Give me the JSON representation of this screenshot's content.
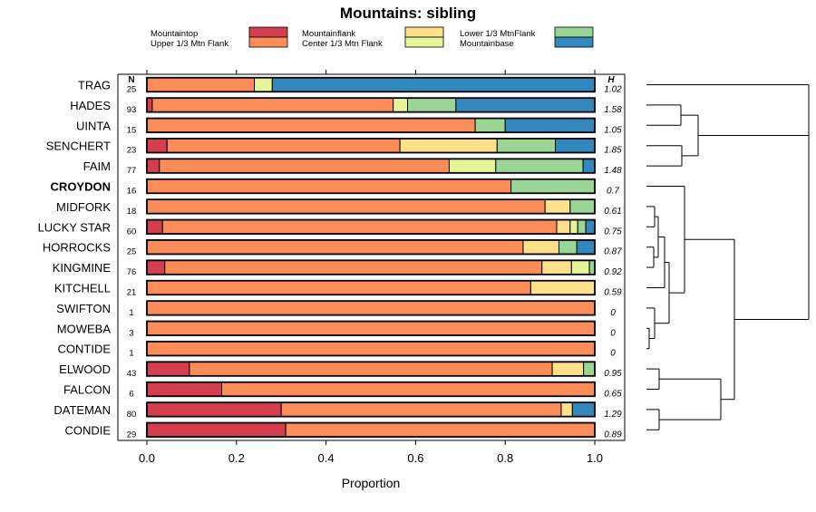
{
  "chart_data": {
    "type": "bar",
    "orientation": "horizontal",
    "stacked": true,
    "title": "Mountains: sibling",
    "xlabel": "Proportion",
    "xlim": [
      0,
      1
    ],
    "xticks": [
      "0.0",
      "0.2",
      "0.4",
      "0.6",
      "0.8",
      "1.0"
    ],
    "n_header": "N",
    "h_header": "H",
    "bold_category": "CROYDON",
    "legend": [
      {
        "name": "Mountaintop",
        "color": "#d53e4f"
      },
      {
        "name": "Upper 1/3 Mtn Flank",
        "color": "#fc8d59"
      },
      {
        "name": "Mountainflank",
        "color": "#fee08b"
      },
      {
        "name": "Center 1/3 Mtn Flank",
        "color": "#e6f598"
      },
      {
        "name": "Lower 1/3 MtnFlank",
        "color": "#99d594"
      },
      {
        "name": "Mountainbase",
        "color": "#3288bd"
      }
    ],
    "categories": [
      "TRAG",
      "HADES",
      "UINTA",
      "SENCHERT",
      "FAIM",
      "CROYDON",
      "MIDFORK",
      "LUCKY STAR",
      "HORROCKS",
      "KINGMINE",
      "KITCHELL",
      "SWIFTON",
      "MOWEBA",
      "CONTIDE",
      "ELWOOD",
      "FALCON",
      "DATEMAN",
      "CONDIE"
    ],
    "N": [
      "25",
      "93",
      "15",
      "23",
      "77",
      "16",
      "18",
      "60",
      "25",
      "76",
      "21",
      "1",
      "3",
      "1",
      "43",
      "6",
      "80",
      "29"
    ],
    "H": [
      "1.02",
      "1.58",
      "1.05",
      "1.85",
      "1.48",
      "0.7",
      "0.61",
      "0.75",
      "0.87",
      "0.92",
      "0.59",
      "0",
      "0",
      "0",
      "0.95",
      "0.65",
      "1.29",
      "0.89"
    ],
    "series": [
      {
        "name": "Mountaintop",
        "values": [
          0,
          0.012,
          0,
          0.045,
          0.028,
          0,
          0,
          0.035,
          0,
          0.04,
          0,
          0,
          0,
          0,
          0.095,
          0.167,
          0.3,
          0.31
        ]
      },
      {
        "name": "Upper 1/3 Mtn Flank",
        "values": [
          0.24,
          0.538,
          0.733,
          0.52,
          0.647,
          0.813,
          0.889,
          0.88,
          0.84,
          0.842,
          0.857,
          1,
          1,
          1,
          0.81,
          0.833,
          0.625,
          0.69
        ]
      },
      {
        "name": "Mountainflank",
        "values": [
          0,
          0,
          0,
          0.217,
          0,
          0,
          0.056,
          0.03,
          0.08,
          0.066,
          0.143,
          0,
          0,
          0,
          0.07,
          0,
          0.025,
          0
        ]
      },
      {
        "name": "Center 1/3 Mtn Flank",
        "values": [
          0.04,
          0.032,
          0,
          0,
          0.104,
          0,
          0,
          0.017,
          0,
          0.04,
          0,
          0,
          0,
          0,
          0,
          0,
          0,
          0
        ]
      },
      {
        "name": "Lower 1/3 MtnFlank",
        "values": [
          0,
          0.108,
          0.067,
          0.13,
          0.195,
          0.187,
          0.055,
          0.018,
          0.04,
          0.012,
          0,
          0,
          0,
          0,
          0.025,
          0,
          0,
          0
        ]
      },
      {
        "name": "Mountainbase",
        "values": [
          0.72,
          0.31,
          0.2,
          0.088,
          0.026,
          0,
          0,
          0.02,
          0.04,
          0,
          0,
          0,
          0,
          0,
          0,
          0,
          0.05,
          0
        ]
      }
    ],
    "dendrogram": {
      "type": "hierarchical-clustering",
      "leaf_order": [
        "TRAG",
        "HADES",
        "UINTA",
        "SENCHERT",
        "FAIM",
        "CROYDON",
        "MIDFORK",
        "LUCKY STAR",
        "HORROCKS",
        "KINGMINE",
        "KITCHELL",
        "SWIFTON",
        "MOWEBA",
        "CONTIDE",
        "ELWOOD",
        "FALCON",
        "DATEMAN",
        "CONDIE"
      ]
    }
  }
}
